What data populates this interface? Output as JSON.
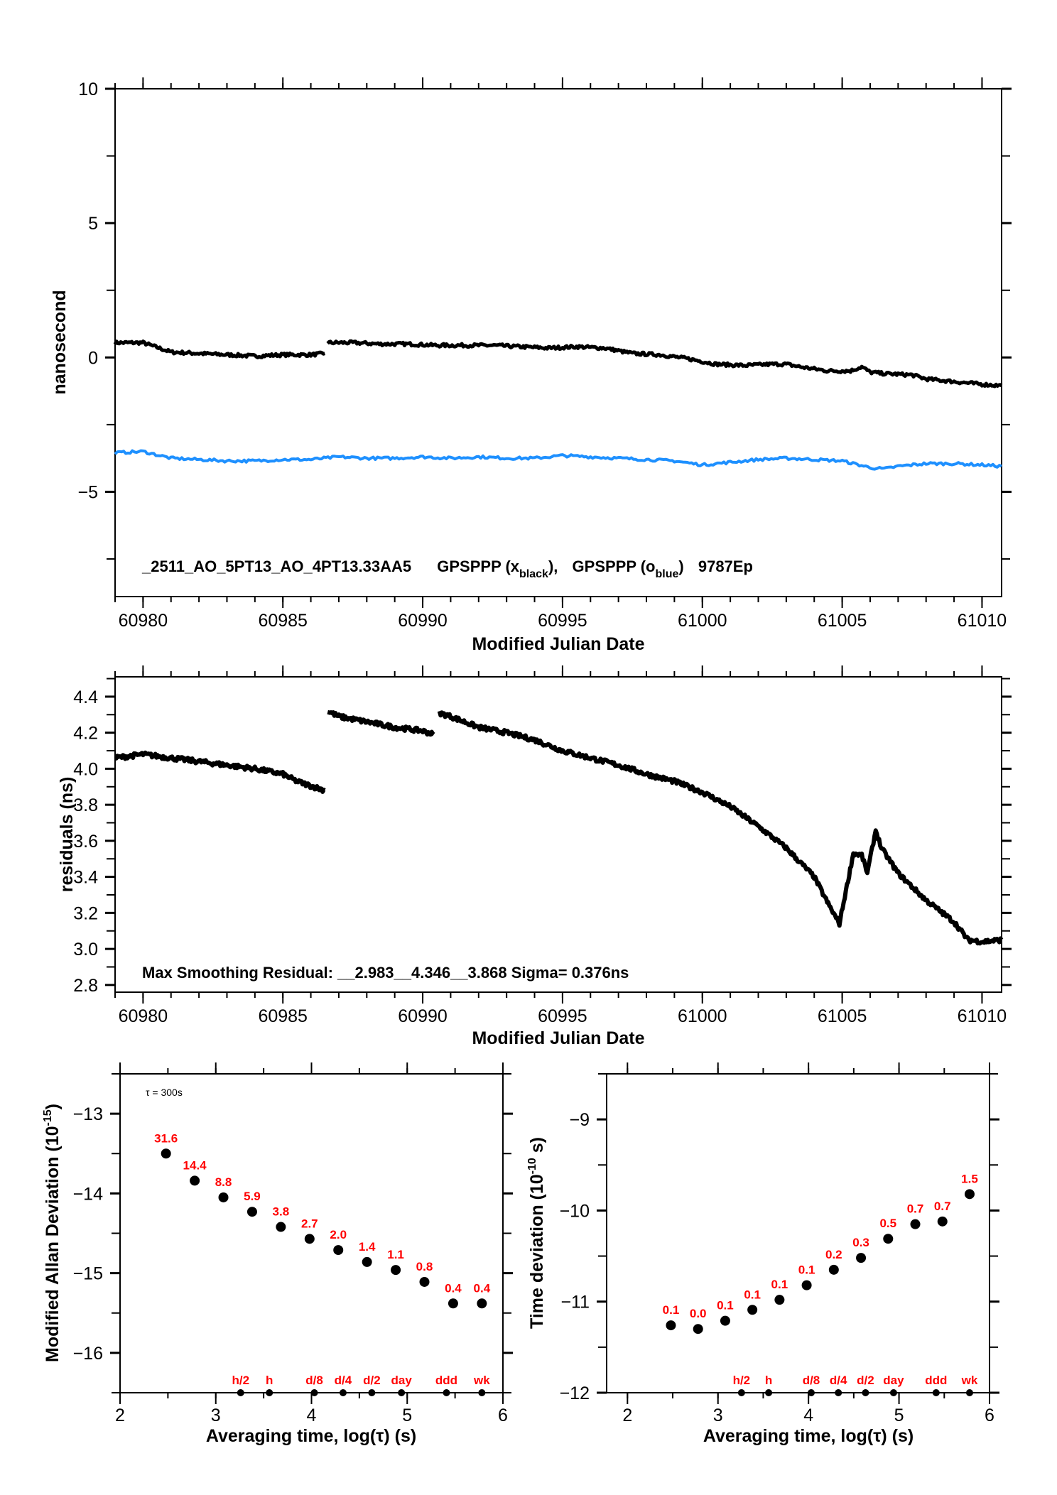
{
  "colors": {
    "black_series": "#000000",
    "blue_series": "#1e90ff",
    "label_red": "#ff0000"
  },
  "chart_data": [
    {
      "id": "top",
      "type": "line",
      "title": "",
      "xlabel": "Modified Julian Date",
      "ylabel": "nanosecond",
      "xlim": [
        60979.0,
        61010.7
      ],
      "ylim": [
        -8.9,
        10
      ],
      "xticks": [
        60980,
        60985,
        60990,
        60995,
        61000,
        61005,
        61010
      ],
      "xtick_labels": [
        "60980",
        "60985",
        "60990",
        "60995",
        "61000",
        "61005",
        "61010"
      ],
      "yticks": [
        10,
        5,
        0,
        -5
      ],
      "ytick_labels": [
        "10",
        "5",
        "0",
        "−5"
      ],
      "annotation": {
        "id_text": "_2511_AO_5PT13_AO_4PT13.33AA5",
        "series1_name": "GPSPPP (x",
        "series1_sub": "black",
        "sep": "),",
        "series2_name": "GPSPPP (o",
        "series2_sub": "blue",
        "series2_close": ")",
        "epochs": "9787Ep"
      },
      "series": [
        {
          "name": "GPSPPP (x black)",
          "color": "#000000",
          "x": [
            60979.0,
            60980.0,
            60981.0,
            60982.0,
            60983.0,
            60984.0,
            60985.0,
            60986.0,
            60986.5,
            60986.6,
            60987.5,
            60988.5,
            60989.5,
            60990.5,
            60991.5,
            60992.5,
            60993.5,
            60994.5,
            60995.5,
            60996.5,
            60997.5,
            60998.5,
            60999.5,
            61000.5,
            61001.5,
            61002.5,
            61003.0,
            61003.5,
            61004.5,
            61005.3,
            61005.7,
            61006.0,
            61006.5,
            61007.5,
            61008.0,
            61009.0,
            61010.0,
            61010.7
          ],
          "y": [
            0.55,
            0.55,
            0.2,
            0.15,
            0.1,
            0.05,
            0.1,
            0.1,
            0.15,
            0.55,
            0.55,
            0.5,
            0.5,
            0.45,
            0.45,
            0.45,
            0.4,
            0.35,
            0.4,
            0.35,
            0.15,
            0.1,
            -0.05,
            -0.25,
            -0.3,
            -0.25,
            -0.25,
            -0.35,
            -0.5,
            -0.5,
            -0.35,
            -0.55,
            -0.6,
            -0.65,
            -0.8,
            -0.9,
            -1.0,
            -1.05
          ]
        },
        {
          "name": "GPSPPP (o blue)",
          "color": "#1e90ff",
          "x": [
            60979.0,
            60980.0,
            60981.0,
            60982.0,
            60983.0,
            60984.0,
            60985.0,
            60986.0,
            60987.0,
            60988.0,
            60989.0,
            60990.0,
            60991.0,
            60992.0,
            60993.0,
            60994.0,
            60995.0,
            60996.0,
            60997.0,
            60998.0,
            60999.0,
            61000.0,
            61001.0,
            61002.0,
            61003.0,
            61004.0,
            61005.0,
            61006.0,
            61006.5,
            61007.0,
            61008.0,
            61009.0,
            61010.0,
            61010.7
          ],
          "y": [
            -3.55,
            -3.5,
            -3.75,
            -3.8,
            -3.85,
            -3.85,
            -3.8,
            -3.8,
            -3.7,
            -3.75,
            -3.75,
            -3.7,
            -3.75,
            -3.7,
            -3.75,
            -3.75,
            -3.65,
            -3.7,
            -3.75,
            -3.8,
            -3.85,
            -4.0,
            -3.9,
            -3.8,
            -3.75,
            -3.8,
            -3.85,
            -4.1,
            -4.15,
            -4.05,
            -3.95,
            -3.95,
            -4.0,
            -4.05
          ]
        }
      ]
    },
    {
      "id": "middle",
      "type": "scatter",
      "xlabel": "Modified Julian Date",
      "ylabel": "residuals (ns)",
      "xlim": [
        60979.0,
        61010.7
      ],
      "ylim": [
        2.76,
        4.51
      ],
      "xticks": [
        60980,
        60985,
        60990,
        60995,
        61000,
        61005,
        61010
      ],
      "xtick_labels": [
        "60980",
        "60985",
        "60990",
        "60995",
        "61000",
        "61005",
        "61010"
      ],
      "yticks": [
        4.4,
        4.2,
        4.0,
        3.8,
        3.6,
        3.4,
        3.2,
        3.0,
        2.8
      ],
      "ytick_labels": [
        "4.4",
        "4.2",
        "4.0",
        "3.8",
        "3.6",
        "3.4",
        "3.2",
        "3.0",
        "2.8"
      ],
      "annotation": "Max Smoothing Residual: __2.983__4.346__3.868  Sigma= 0.376ns",
      "segments": [
        {
          "x": [
            60979.0,
            60980.0,
            60981.0,
            60982.0,
            60983.0,
            60984.0,
            60985.0,
            60985.5,
            60986.5
          ],
          "y": [
            4.06,
            4.08,
            4.06,
            4.04,
            4.02,
            4.0,
            3.97,
            3.93,
            3.88
          ]
        },
        {
          "x": [
            60986.6,
            60987.0,
            60988.0,
            60989.0,
            60990.0,
            60990.4
          ],
          "y": [
            4.32,
            4.29,
            4.26,
            4.23,
            4.21,
            4.19
          ]
        },
        {
          "x": [
            60990.6,
            60991.0,
            60992.0,
            60993.0,
            60994.0,
            60995.0,
            60996.0,
            60997.0,
            60998.0,
            60999.0,
            61000.0,
            61001.0,
            61002.0,
            61003.0,
            61004.0,
            61004.5,
            61004.9,
            61005.4,
            61005.7,
            61005.9,
            61006.2,
            61006.4,
            61007.0,
            61008.0,
            61009.0,
            61009.5,
            61010.0,
            61010.7
          ],
          "y": [
            4.31,
            4.29,
            4.23,
            4.2,
            4.16,
            4.1,
            4.06,
            4.02,
            3.97,
            3.93,
            3.87,
            3.79,
            3.68,
            3.56,
            3.4,
            3.25,
            3.14,
            3.53,
            3.52,
            3.42,
            3.66,
            3.56,
            3.42,
            3.27,
            3.15,
            3.05,
            3.04,
            3.05
          ]
        }
      ]
    },
    {
      "id": "mdev",
      "type": "scatter",
      "xlabel": "Averaging time, log(τ) (s)",
      "ylabel": "Modified Allan Deviation (10",
      "ylabel_sup": "-15",
      "ylabel_close": ")",
      "note": "τ = 300s",
      "xlim": [
        2,
        6
      ],
      "ylim": [
        -16.5,
        -12.5
      ],
      "xticks": [
        2,
        3,
        4,
        5,
        6
      ],
      "xtick_labels": [
        "2",
        "3",
        "4",
        "5",
        "6"
      ],
      "yticks": [
        -13,
        -14,
        -15,
        -16
      ],
      "ytick_labels": [
        "−13",
        "−14",
        "−15",
        "−16"
      ],
      "x": [
        2.48,
        2.78,
        3.08,
        3.38,
        3.68,
        3.98,
        4.28,
        4.58,
        4.88,
        5.18,
        5.48,
        5.78
      ],
      "y": [
        -13.5,
        -13.84,
        -14.05,
        -14.23,
        -14.42,
        -14.57,
        -14.71,
        -14.86,
        -14.96,
        -15.11,
        -15.38,
        -15.38
      ],
      "point_labels": [
        "31.6",
        "14.4",
        "8.8",
        "5.9",
        "3.8",
        "2.7",
        "2.0",
        "1.4",
        "1.1",
        "0.8",
        "0.4",
        "0.4"
      ],
      "markers": {
        "x": [
          3.26,
          3.56,
          4.03,
          4.33,
          4.63,
          4.94,
          5.41,
          5.78
        ],
        "labels": [
          "h/2",
          "h",
          "d/8",
          "d/4",
          "d/2",
          "day",
          "ddd",
          "wk"
        ]
      }
    },
    {
      "id": "tdev",
      "type": "scatter",
      "xlabel": "Averaging time, log(τ) (s)",
      "ylabel": "Time deviation (10",
      "ylabel_sup": "-10",
      "ylabel_close": " s)",
      "xlim": [
        1.77,
        6.0
      ],
      "ylim": [
        -12,
        -8.5
      ],
      "xticks": [
        2,
        3,
        4,
        5,
        6
      ],
      "xtick_labels": [
        "2",
        "3",
        "4",
        "5",
        "6"
      ],
      "yticks": [
        -9,
        -10,
        -11,
        -12
      ],
      "ytick_labels": [
        "−9",
        "−10",
        "−11",
        "−12"
      ],
      "x": [
        2.48,
        2.78,
        3.08,
        3.38,
        3.68,
        3.98,
        4.28,
        4.58,
        4.88,
        5.18,
        5.48,
        5.78
      ],
      "y": [
        -11.26,
        -11.3,
        -11.21,
        -11.09,
        -10.98,
        -10.82,
        -10.65,
        -10.52,
        -10.31,
        -10.15,
        -10.12,
        -9.82
      ],
      "point_labels": [
        "0.1",
        "0.0",
        "0.1",
        "0.1",
        "0.1",
        "0.1",
        "0.2",
        "0.3",
        "0.5",
        "0.7",
        "0.7",
        "1.5"
      ],
      "markers": {
        "x": [
          3.26,
          3.56,
          4.03,
          4.33,
          4.63,
          4.94,
          5.41,
          5.78
        ],
        "labels": [
          "h/2",
          "h",
          "d/8",
          "d/4",
          "d/2",
          "day",
          "ddd",
          "wk"
        ]
      }
    }
  ]
}
